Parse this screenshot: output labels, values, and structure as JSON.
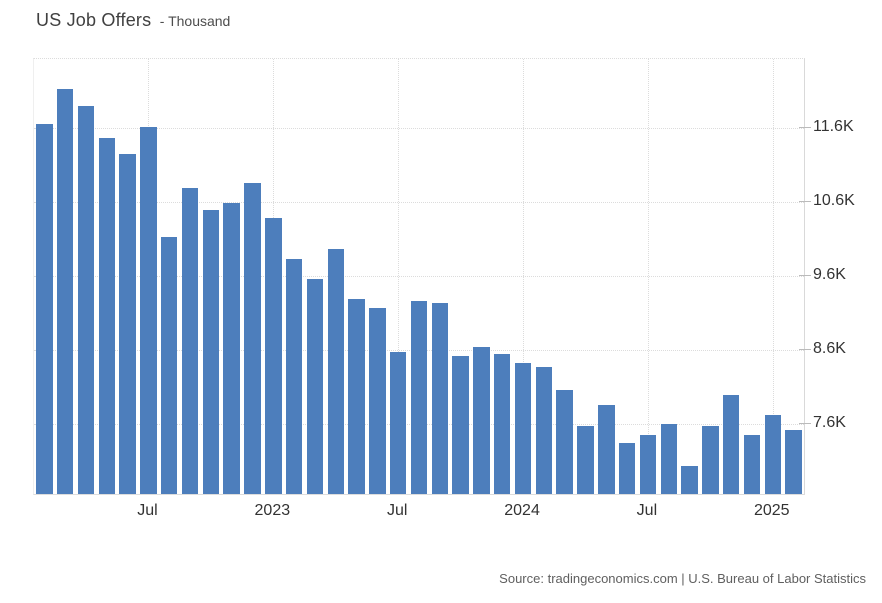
{
  "title": "US Job Offers",
  "subtitle": "- Thousand",
  "source": "Source: tradingeconomics.com | U.S. Bureau of Labor Statistics",
  "colors": {
    "bar": "#4d7ebc",
    "grid": "#dcdcdc",
    "axis": "#d9d9d9",
    "tick_label": "#333333",
    "title": "#404040",
    "source": "#606060",
    "background": "#ffffff"
  },
  "chart_data": {
    "type": "bar",
    "title": "US Job Offers",
    "unit_label": "Thousand",
    "legend": null,
    "grid": true,
    "y_axis_side": "right",
    "ylim": [
      6660,
      12530
    ],
    "months": [
      "2022-02",
      "2022-03",
      "2022-04",
      "2022-05",
      "2022-06",
      "2022-07",
      "2022-08",
      "2022-09",
      "2022-10",
      "2022-11",
      "2022-12",
      "2023-01",
      "2023-02",
      "2023-03",
      "2023-04",
      "2023-05",
      "2023-06",
      "2023-07",
      "2023-08",
      "2023-09",
      "2023-10",
      "2023-11",
      "2023-12",
      "2024-01",
      "2024-02",
      "2024-03",
      "2024-04",
      "2024-05",
      "2024-06",
      "2024-07",
      "2024-08",
      "2024-09",
      "2024-10",
      "2024-11",
      "2024-12",
      "2025-01",
      "2025-02"
    ],
    "values": [
      11650,
      12120,
      11890,
      11470,
      11250,
      11610,
      10130,
      10790,
      10490,
      10590,
      10850,
      10390,
      9830,
      9560,
      9960,
      9290,
      9170,
      8570,
      9270,
      9240,
      8520,
      8640,
      8550,
      8430,
      8380,
      8060,
      7580,
      7860,
      7350,
      7460,
      7610,
      7040,
      7580,
      8000,
      7460,
      7720,
      7520
    ],
    "x_ticks": [
      {
        "index": 5,
        "label": "Jul"
      },
      {
        "index": 11,
        "label": "2023"
      },
      {
        "index": 17,
        "label": "Jul"
      },
      {
        "index": 23,
        "label": "2024"
      },
      {
        "index": 29,
        "label": "Jul"
      },
      {
        "index": 35,
        "label": "2025"
      }
    ],
    "y_ticks": [
      {
        "value": 7600,
        "label": "7.6K"
      },
      {
        "value": 8600,
        "label": "8.6K"
      },
      {
        "value": 9600,
        "label": "9.6K"
      },
      {
        "value": 10600,
        "label": "10.6K"
      },
      {
        "value": 11600,
        "label": "11.6K"
      }
    ]
  }
}
